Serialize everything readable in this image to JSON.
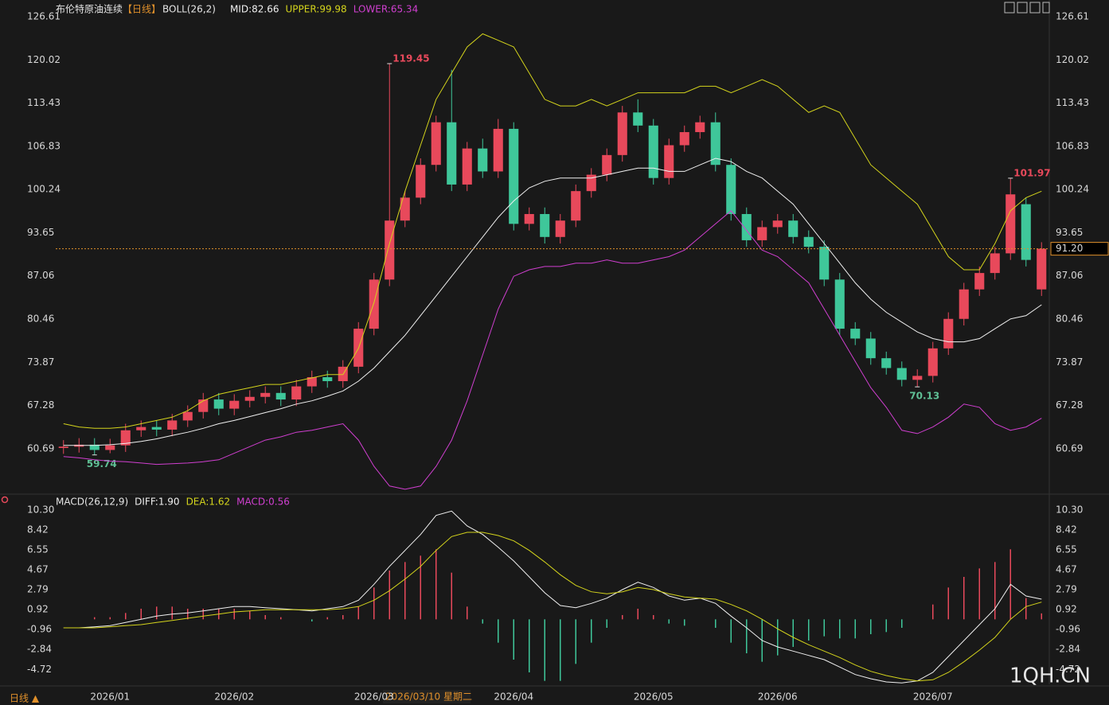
{
  "chart_data": [
    {
      "type": "candlestick",
      "title": "布伦特原油连续",
      "period": "【日线】",
      "indicator": "BOLL(26,2)",
      "categories": [
        null,
        null,
        null,
        "2026/01",
        null,
        null,
        null,
        null,
        null,
        null,
        null,
        "2026/02",
        null,
        null,
        null,
        null,
        null,
        null,
        null,
        null,
        "2026/03",
        null,
        null,
        null,
        null,
        null,
        null,
        null,
        null,
        "2026/04",
        null,
        null,
        null,
        null,
        null,
        null,
        null,
        null,
        "2026/05",
        null,
        null,
        null,
        null,
        null,
        null,
        null,
        "2026/06",
        null,
        null,
        null,
        null,
        null,
        null,
        null,
        null,
        null,
        "2026/07",
        null,
        null,
        null,
        null,
        null,
        null,
        null
      ],
      "open": [
        60.8,
        61,
        61.3,
        60.5,
        61.2,
        63.5,
        64,
        63.6,
        65,
        66.3,
        68.2,
        66.8,
        68,
        68.6,
        69.2,
        68.2,
        70.2,
        71.6,
        71,
        73.2,
        79,
        86.5,
        95.5,
        99,
        104,
        110.5,
        101,
        106.5,
        103,
        109.5,
        95,
        96.5,
        93,
        95.5,
        100,
        102.5,
        105.5,
        112,
        110,
        102,
        107,
        109,
        110.5,
        104,
        96.5,
        92.5,
        94.5,
        95.5,
        93,
        91.5,
        86.5,
        79,
        77.5,
        74.5,
        73,
        71.2,
        71.8,
        76,
        80.5,
        85,
        87.5,
        90.5,
        98,
        85
      ],
      "high": [
        62,
        62.3,
        62.3,
        62.2,
        64.5,
        65,
        65,
        66,
        67.3,
        69.2,
        69.2,
        69,
        69.6,
        70.2,
        70.2,
        71.2,
        72.6,
        72.6,
        74.2,
        80,
        87.5,
        119.45,
        100,
        105,
        111.5,
        118.5,
        107.5,
        108,
        111,
        110.5,
        97.5,
        97.5,
        96.5,
        101,
        103.5,
        106.5,
        113,
        114,
        111,
        108,
        110,
        111.5,
        112,
        105,
        97.5,
        95.5,
        96.5,
        96.5,
        94,
        92.5,
        87.5,
        80,
        78.5,
        75.5,
        74,
        72.8,
        77,
        81.5,
        86,
        88.5,
        91.5,
        101.97,
        99,
        92.2
      ],
      "low": [
        59.9,
        60.1,
        59.74,
        60,
        60.2,
        62.5,
        62.6,
        62.6,
        64,
        65.3,
        65.8,
        65.8,
        67,
        67.6,
        67.2,
        67.2,
        69.2,
        70,
        70,
        72.2,
        78,
        85.5,
        94.5,
        98,
        103,
        100,
        100,
        102,
        102,
        94,
        94,
        92,
        92,
        94.5,
        99,
        101.5,
        104.5,
        109,
        101,
        101,
        106,
        108,
        103,
        95.5,
        91.5,
        91.5,
        93.5,
        92,
        90.5,
        85.5,
        78,
        76.5,
        73.5,
        72,
        70.2,
        70.13,
        70.8,
        75,
        79.5,
        84,
        86.5,
        89.5,
        88.5,
        84
      ],
      "close": [
        61,
        61.3,
        60.5,
        61.2,
        63.5,
        64,
        63.6,
        65,
        66.3,
        68.2,
        66.8,
        68,
        68.6,
        69.2,
        68.2,
        70.2,
        71.6,
        71,
        73.2,
        79,
        86.5,
        95.5,
        99,
        104,
        110.5,
        101,
        106.5,
        103,
        109.5,
        95,
        96.5,
        93,
        95.5,
        100,
        102.5,
        105.5,
        112,
        110,
        102,
        107,
        109,
        110.5,
        104,
        96.5,
        92.5,
        94.5,
        95.5,
        93,
        91.5,
        86.5,
        79,
        77.5,
        74.5,
        73,
        71.2,
        71.8,
        76,
        80.5,
        85,
        87.5,
        90.5,
        99.5,
        89.5,
        91.2
      ],
      "high_labels": [
        null,
        null,
        null,
        null,
        null,
        null,
        null,
        null,
        null,
        null,
        null,
        null,
        null,
        null,
        null,
        null,
        null,
        null,
        null,
        null,
        null,
        "119.45",
        null,
        null,
        null,
        null,
        null,
        null,
        null,
        null,
        null,
        null,
        null,
        null,
        null,
        null,
        null,
        null,
        null,
        null,
        null,
        null,
        null,
        null,
        null,
        null,
        null,
        null,
        null,
        null,
        null,
        null,
        null,
        null,
        null,
        null,
        null,
        null,
        null,
        null,
        null,
        "101.97",
        null,
        null
      ],
      "low_labels": [
        null,
        null,
        "59.74",
        null,
        null,
        null,
        null,
        null,
        null,
        null,
        null,
        null,
        null,
        null,
        null,
        null,
        null,
        null,
        null,
        null,
        null,
        null,
        null,
        null,
        null,
        null,
        null,
        null,
        null,
        null,
        null,
        null,
        null,
        null,
        null,
        null,
        null,
        null,
        null,
        null,
        null,
        null,
        null,
        null,
        null,
        null,
        null,
        null,
        null,
        null,
        null,
        null,
        null,
        null,
        null,
        "70.13",
        null,
        null,
        null,
        null,
        null,
        null,
        null,
        null
      ],
      "up_color": "#e8495b",
      "down_color": "#3fc79a",
      "high_label_color": "#e8495b",
      "low_label_color": "#5fbf95",
      "ylim": [
        54,
        126.61
      ],
      "yticks": [
        126.61,
        120.02,
        113.43,
        106.83,
        100.24,
        93.65,
        87.06,
        80.46,
        73.87,
        67.28,
        60.69
      ],
      "last_price": {
        "value": 91.2,
        "label": "91.20"
      },
      "last_price_color": "#e0902b",
      "series": [
        {
          "name": "MID:82.66",
          "color": "#f0f0f0",
          "values": [
            61.2,
            61.2,
            61.2,
            61.3,
            61.5,
            61.8,
            62.2,
            62.7,
            63.2,
            63.8,
            64.5,
            65,
            65.6,
            66.2,
            66.8,
            67.5,
            68,
            68.7,
            69.5,
            71,
            73,
            75.5,
            78,
            81,
            84,
            87,
            90,
            93,
            96,
            98.5,
            100.5,
            101.5,
            102,
            102,
            102,
            102.5,
            103,
            103.5,
            103.5,
            103,
            103,
            104,
            105,
            104.5,
            103,
            102,
            100,
            98,
            95,
            92,
            89,
            86,
            83.5,
            81.5,
            80,
            78.5,
            77.5,
            77,
            77,
            77.5,
            79,
            80.5,
            81,
            82.66
          ]
        },
        {
          "name": "UPPER:99.98",
          "color": "#d4d41c",
          "values": [
            64.5,
            64,
            63.8,
            63.8,
            64,
            64.5,
            65,
            65.5,
            66.5,
            68,
            69,
            69.5,
            70,
            70.5,
            70.5,
            71,
            71.5,
            72,
            72,
            76,
            83,
            92,
            100,
            107,
            114,
            118,
            122,
            124,
            123,
            122,
            118,
            114,
            113,
            113,
            114,
            113,
            114,
            115,
            115,
            115,
            115,
            116,
            116,
            115,
            116,
            117,
            116,
            114,
            112,
            113,
            112,
            108,
            104,
            102,
            100,
            98,
            94,
            90,
            88,
            88,
            92,
            97,
            99,
            99.98
          ]
        },
        {
          "name": "LOWER:65.34",
          "color": "#d03fd0",
          "values": [
            59.5,
            59.3,
            59,
            58.8,
            58.7,
            58.5,
            58.3,
            58.4,
            58.5,
            58.7,
            59,
            60,
            61,
            62,
            62.5,
            63.2,
            63.5,
            64,
            64.5,
            62,
            58,
            55,
            54.5,
            55,
            58,
            62,
            68,
            75,
            82,
            87,
            88,
            88.5,
            88.5,
            89,
            89,
            89.5,
            89,
            89,
            89.5,
            90,
            91,
            93,
            95,
            97,
            94,
            91,
            90,
            88,
            86,
            82,
            78,
            74,
            70,
            67,
            63.5,
            63,
            64,
            65.5,
            67.5,
            67,
            64.5,
            63.5,
            64,
            65.34
          ]
        }
      ]
    },
    {
      "type": "macd",
      "title": "MACD(26,12,9)",
      "ylim": [
        -6.2,
        10.3
      ],
      "yticks": [
        {
          "value": 10.3,
          "label": "10.30"
        },
        8.42,
        6.55,
        4.67,
        2.79,
        0.92,
        -0.96,
        -2.84,
        -4.72
      ],
      "series": [
        {
          "name": "DIFF:1.90",
          "color": "#f0f0f0",
          "values": [
            -0.8,
            -0.8,
            -0.7,
            -0.6,
            -0.3,
            0,
            0.3,
            0.5,
            0.6,
            0.8,
            1.0,
            1.2,
            1.2,
            1.1,
            1.0,
            0.9,
            0.8,
            1.0,
            1.2,
            1.8,
            3.3,
            5.0,
            6.5,
            8.0,
            9.8,
            10.2,
            8.8,
            8.0,
            6.8,
            5.5,
            4.0,
            2.5,
            1.3,
            1.1,
            1.5,
            2.0,
            2.8,
            3.5,
            3.0,
            2.2,
            1.8,
            2.0,
            1.5,
            0.3,
            -0.8,
            -2.0,
            -2.6,
            -3.0,
            -3.4,
            -3.8,
            -4.5,
            -5.2,
            -5.6,
            -5.9,
            -6.0,
            -5.8,
            -5.0,
            -3.5,
            -2.0,
            -0.5,
            1.0,
            3.3,
            2.2,
            1.9
          ]
        },
        {
          "name": "DEA:1.62",
          "color": "#d4d41c",
          "values": [
            -0.8,
            -0.8,
            -0.8,
            -0.7,
            -0.6,
            -0.5,
            -0.3,
            -0.1,
            0.1,
            0.3,
            0.5,
            0.7,
            0.8,
            0.9,
            0.9,
            0.9,
            0.9,
            0.9,
            1.0,
            1.2,
            1.8,
            2.7,
            3.8,
            5.0,
            6.5,
            7.8,
            8.2,
            8.2,
            7.9,
            7.4,
            6.5,
            5.4,
            4.2,
            3.2,
            2.6,
            2.4,
            2.6,
            3.0,
            2.8,
            2.4,
            2.1,
            2.0,
            1.9,
            1.4,
            0.8,
            0.0,
            -0.9,
            -1.7,
            -2.4,
            -3.0,
            -3.6,
            -4.3,
            -4.9,
            -5.3,
            -5.6,
            -5.8,
            -5.7,
            -5.0,
            -4.0,
            -2.9,
            -1.7,
            0.0,
            1.2,
            1.62
          ]
        }
      ],
      "bars": {
        "name": "MACD:0.56",
        "color": "#d03fd0",
        "up_color": "#e8495b",
        "down_color": "#3fc79a",
        "values": [
          0,
          0,
          0.2,
          0.2,
          0.6,
          1.0,
          1.2,
          1.2,
          1.0,
          1.0,
          1.0,
          1.0,
          0.8,
          0.4,
          0.2,
          0,
          -0.2,
          0.2,
          0.4,
          1.2,
          3.0,
          4.6,
          5.4,
          6.0,
          6.6,
          4.4,
          1.2,
          -0.4,
          -2.2,
          -3.8,
          -5.0,
          -5.8,
          -5.8,
          -4.2,
          -2.2,
          -0.8,
          0.4,
          1.0,
          0.4,
          -0.4,
          -0.6,
          0,
          -0.8,
          -2.2,
          -3.2,
          -4.0,
          -3.4,
          -2.6,
          -2.0,
          -1.6,
          -1.8,
          -1.8,
          -1.4,
          -1.2,
          -0.8,
          0,
          1.4,
          3.0,
          4.0,
          4.8,
          5.4,
          6.6,
          2.0,
          0.56
        ]
      }
    }
  ],
  "period_switch": "日线 ▲",
  "cursor_label": "2026/03/10 星期二",
  "watermark": "1QH.CN"
}
